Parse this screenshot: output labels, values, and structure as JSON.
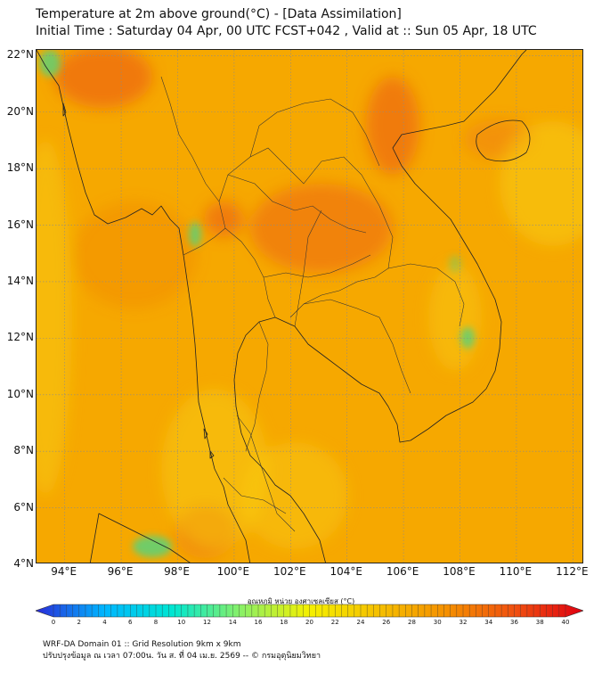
{
  "header": {
    "title": "Temperature at 2m above ground(°C) - [Data Assimilation]",
    "subtitle": "Initial Time : Saturday 04 Apr, 00 UTC FCST+042 , Valid at :: Sun 05 Apr, 18 UTC"
  },
  "map": {
    "lat_labels": [
      "22°N",
      "20°N",
      "18°N",
      "16°N",
      "14°N",
      "12°N",
      "10°N",
      "8°N",
      "6°N",
      "4°N"
    ],
    "lon_labels": [
      "94°E",
      "96°E",
      "98°E",
      "100°E",
      "102°E",
      "104°E",
      "106°E",
      "108°E",
      "110°E",
      "112°E"
    ],
    "extent": {
      "lon": [
        93,
        112.4
      ],
      "lat": [
        4,
        22.2
      ]
    },
    "base_color": "#f6a800",
    "hot_color": "#ee6a10",
    "cool_color": "#59d27a"
  },
  "colorbar": {
    "title": "อุณหภูมิ หน่วย องศาเซลเซียส (°C)",
    "range": [
      0,
      40
    ],
    "tick_labels": [
      "0",
      "2",
      "4",
      "6",
      "8",
      "10",
      "12",
      "14",
      "16",
      "18",
      "20",
      "22",
      "24",
      "26",
      "28",
      "30",
      "32",
      "34",
      "36",
      "38",
      "40"
    ],
    "colors": [
      "#2a2ad8",
      "#00b6ff",
      "#00e6d2",
      "#8af066",
      "#f5f000",
      "#f5c000",
      "#f59000",
      "#f05010",
      "#e00010"
    ]
  },
  "footer": {
    "line1": "WRF-DA Domain 01 :: Grid Resolution 9km x 9km",
    "line2": "ปรับปรุงข้อมูล ณ เวลา 07:00น. วัน ส. ที่ 04 เม.ย. 2569 -- © กรมอุตุนิยมวิทยา"
  }
}
